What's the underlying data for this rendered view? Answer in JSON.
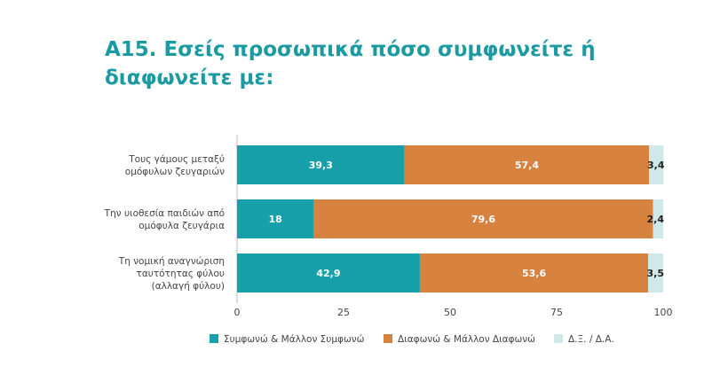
{
  "chart_data": {
    "type": "bar",
    "orientation": "horizontal",
    "stacked": true,
    "title": "A15. Εσείς προσωπικά πόσο συμφωνείτε ή διαφωνείτε με:",
    "categories": [
      [
        "Τους γάμους μεταξύ",
        "ομόφυλων ζευγαριών"
      ],
      [
        "Την υιοθεσία παιδιών από",
        "ομόφυλα ζευγάρια"
      ],
      [
        "Τη νομική αναγνώριση",
        "ταυτότητας φύλου",
        "(αλλαγή φύλου)"
      ]
    ],
    "series": [
      {
        "name": "Συμφωνώ & Μάλλον Συμφωνώ",
        "color": "#17a0aa",
        "label_color": "#ffffff",
        "values": [
          39.3,
          18,
          42.9
        ],
        "labels": [
          "39,3",
          "18",
          "42,9"
        ]
      },
      {
        "name": "Διαφωνώ & Μάλλον Διαφωνώ",
        "color": "#d8823f",
        "label_color": "#ffffff",
        "values": [
          57.4,
          79.6,
          53.6
        ],
        "labels": [
          "57,4",
          "79,6",
          "53,6"
        ]
      },
      {
        "name": "Δ.Ξ. / Δ.Α.",
        "color": "#cfe9ea",
        "label_color": "#222222",
        "values": [
          3.4,
          2.4,
          3.5
        ],
        "labels": [
          "3,4",
          "2,4",
          "3,5"
        ]
      }
    ],
    "xlim": [
      0,
      100
    ],
    "xticks": [
      "0",
      "25",
      "50",
      "75",
      "100"
    ],
    "xtick_values": [
      0,
      25,
      50,
      75,
      100
    ],
    "grid": false,
    "legend": "bottom"
  }
}
